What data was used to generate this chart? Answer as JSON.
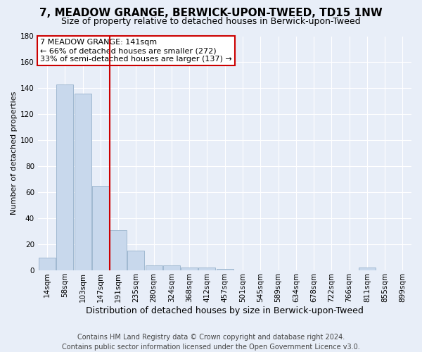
{
  "title": "7, MEADOW GRANGE, BERWICK-UPON-TWEED, TD15 1NW",
  "subtitle": "Size of property relative to detached houses in Berwick-upon-Tweed",
  "xlabel": "Distribution of detached houses by size in Berwick-upon-Tweed",
  "ylabel": "Number of detached properties",
  "footer_line1": "Contains HM Land Registry data © Crown copyright and database right 2024.",
  "footer_line2": "Contains public sector information licensed under the Open Government Licence v3.0.",
  "bin_labels": [
    "14sqm",
    "58sqm",
    "103sqm",
    "147sqm",
    "191sqm",
    "235sqm",
    "280sqm",
    "324sqm",
    "368sqm",
    "412sqm",
    "457sqm",
    "501sqm",
    "545sqm",
    "589sqm",
    "634sqm",
    "678sqm",
    "722sqm",
    "766sqm",
    "811sqm",
    "855sqm",
    "899sqm"
  ],
  "bar_heights": [
    10,
    143,
    136,
    65,
    31,
    15,
    4,
    4,
    2,
    2,
    1,
    0,
    0,
    0,
    0,
    0,
    0,
    0,
    2,
    0,
    0
  ],
  "bar_color": "#c8d8ec",
  "bar_edge_color": "#a0b8d0",
  "bg_color": "#e8eef8",
  "grid_color": "#ffffff",
  "vline_x": 3.5,
  "annotation_line1": "7 MEADOW GRANGE: 141sqm",
  "annotation_line2": "← 66% of detached houses are smaller (272)",
  "annotation_line3": "33% of semi-detached houses are larger (137) →",
  "annotation_box_facecolor": "#ffffff",
  "annotation_box_edgecolor": "#cc0000",
  "vline_color": "#cc0000",
  "ylim_min": 0,
  "ylim_max": 180,
  "yticks": [
    0,
    20,
    40,
    60,
    80,
    100,
    120,
    140,
    160,
    180
  ],
  "title_fontsize": 11,
  "subtitle_fontsize": 9,
  "ylabel_fontsize": 8,
  "xlabel_fontsize": 9,
  "tick_fontsize": 7.5,
  "footer_fontsize": 7,
  "annot_fontsize": 8
}
